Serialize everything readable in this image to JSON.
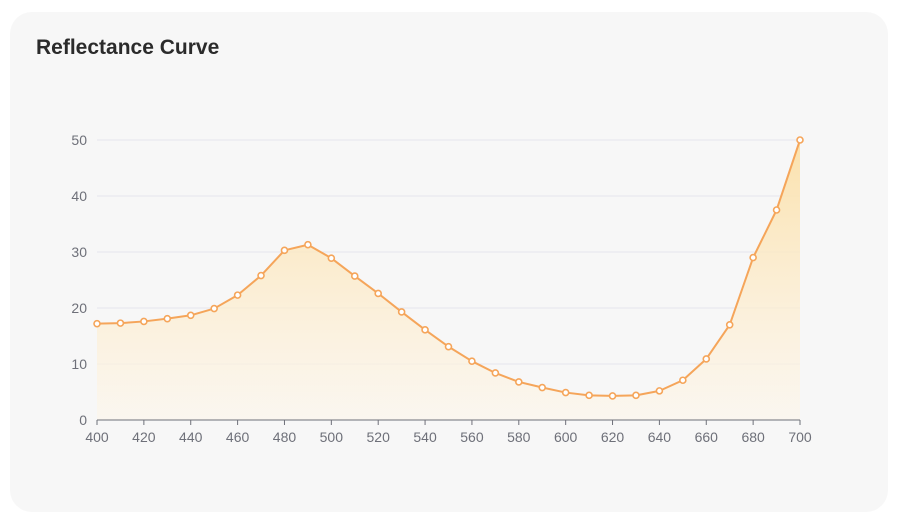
{
  "title": "Reflectance Curve",
  "chart_data": {
    "type": "area",
    "title": "Reflectance Curve",
    "xlabel": "",
    "ylabel": "",
    "x": [
      400,
      410,
      420,
      430,
      440,
      450,
      460,
      470,
      480,
      490,
      500,
      510,
      520,
      530,
      540,
      550,
      560,
      570,
      580,
      590,
      600,
      610,
      620,
      630,
      640,
      650,
      660,
      670,
      680,
      690,
      700
    ],
    "values": [
      17.2,
      17.3,
      17.6,
      18.1,
      18.7,
      19.9,
      22.3,
      25.8,
      30.3,
      31.3,
      28.9,
      25.7,
      22.6,
      19.3,
      16.1,
      13.1,
      10.5,
      8.4,
      6.8,
      5.8,
      4.9,
      4.4,
      4.3,
      4.4,
      5.2,
      7.1,
      10.9,
      17.0,
      29.0,
      37.5,
      50.0
    ],
    "xlim": [
      400,
      700
    ],
    "ylim": [
      0,
      50
    ],
    "x_ticks": [
      400,
      420,
      440,
      460,
      480,
      500,
      520,
      540,
      560,
      580,
      600,
      620,
      640,
      660,
      680,
      700
    ],
    "y_ticks": [
      0,
      10,
      20,
      30,
      40,
      50
    ],
    "grid": true,
    "legend": "none",
    "colors": {
      "line": "#f5a55a",
      "marker_fill": "#ffffff",
      "area_top": "#fbe0a8",
      "area_bottom": "#fdf6ea",
      "grid": "#e4e6ee",
      "axis": "#6e7079",
      "card": "#f7f7f7"
    }
  }
}
